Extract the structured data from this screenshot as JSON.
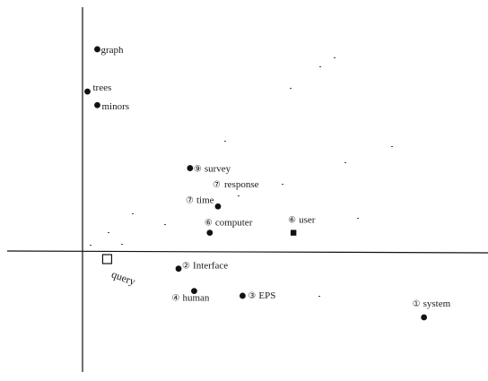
{
  "chart_data": {
    "type": "scatter",
    "title": "",
    "xlabel": "",
    "ylabel": "",
    "axes_origin": {
      "x": 0,
      "y": 0
    },
    "xlim": [
      -0.1,
      0.5
    ],
    "ylim": [
      -0.15,
      0.3
    ],
    "points": [
      {
        "x": 0.018,
        "y": 0.254,
        "label": "graph",
        "prefix": "",
        "marker": "dot"
      },
      {
        "x": 0.006,
        "y": 0.201,
        "label": "trees",
        "prefix": "",
        "marker": "dot"
      },
      {
        "x": 0.018,
        "y": 0.184,
        "label": "minors",
        "prefix": "",
        "marker": "dot"
      },
      {
        "x": 0.131,
        "y": 0.105,
        "label": "survey",
        "prefix": "⑨",
        "marker": "dot"
      },
      {
        "x": 0.165,
        "y": 0.057,
        "label": "time",
        "prefix": "⑦",
        "marker": "dot"
      },
      {
        "x": 0.155,
        "y": 0.024,
        "label": "computer",
        "prefix": "⑥",
        "marker": "dot"
      },
      {
        "x": 0.257,
        "y": 0.024,
        "label": "user",
        "prefix": "⑥",
        "marker": "square"
      },
      {
        "x": 0.117,
        "y": -0.021,
        "label": "Interface",
        "prefix": "②",
        "marker": "dot"
      },
      {
        "x": 0.136,
        "y": -0.049,
        "label": "human",
        "prefix": "④",
        "marker": "dot"
      },
      {
        "x": 0.195,
        "y": -0.055,
        "label": "EPS",
        "prefix": "③",
        "marker": "dot"
      },
      {
        "x": 0.416,
        "y": -0.082,
        "label": "system",
        "prefix": "①",
        "marker": "dot"
      }
    ],
    "extra_labels": [
      {
        "text": "response",
        "prefix": "⑦"
      }
    ],
    "query": {
      "x": 0.03,
      "y": -0.009,
      "label": "query"
    }
  }
}
